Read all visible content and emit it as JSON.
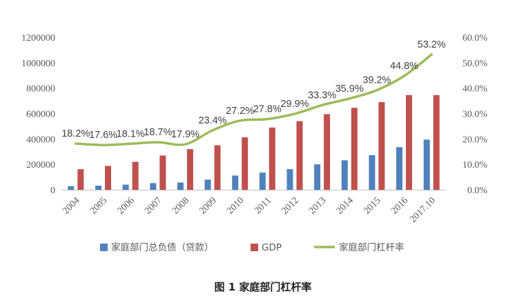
{
  "caption": "图 1 家庭部门杠杆率",
  "chart_data": {
    "type": "bar",
    "categories": [
      "2004",
      "2005",
      "2006",
      "2007",
      "2008",
      "2009",
      "2010",
      "2011",
      "2012",
      "2013",
      "2014",
      "2015",
      "2016",
      "2017.10"
    ],
    "series": [
      {
        "name": "家庭部门总负债（贷款）",
        "type": "bar",
        "axis": "left",
        "color": "#4f81bd",
        "values": [
          28000,
          32000,
          40000,
          52000,
          57000,
          80000,
          112000,
          135000,
          162000,
          200000,
          232000,
          272000,
          335000,
          395000
        ]
      },
      {
        "name": "GDP",
        "type": "bar",
        "axis": "left",
        "color": "#c0504d",
        "values": [
          162000,
          188000,
          220000,
          270000,
          320000,
          350000,
          412000,
          490000,
          540000,
          595000,
          645000,
          690000,
          745000,
          745000
        ]
      },
      {
        "name": "家庭部门杠杆率",
        "type": "line",
        "axis": "right",
        "color": "#9bbb59",
        "values": [
          18.2,
          17.6,
          18.1,
          18.7,
          17.9,
          23.4,
          27.2,
          27.8,
          29.9,
          33.3,
          35.9,
          39.2,
          44.8,
          53.2
        ],
        "labels": [
          "18.2%",
          "17.6%",
          "18.1%",
          "18.7%",
          "17.9%",
          "23.4%",
          "27.2%",
          "27.8%",
          "29.9%",
          "33.3%",
          "35.9%",
          "39.2%",
          "44.8%",
          "53.2%"
        ]
      }
    ],
    "y_left": {
      "min": 0,
      "max": 1200000,
      "ticks": [
        "0",
        "200000",
        "400000",
        "600000",
        "800000",
        "1000000",
        "1200000"
      ]
    },
    "y_right": {
      "min": 0,
      "max": 60,
      "ticks": [
        "0.0%",
        "10.0%",
        "20.0%",
        "30.0%",
        "40.0%",
        "50.0%",
        "60.0%"
      ]
    },
    "grid": false,
    "legend_position": "bottom"
  }
}
